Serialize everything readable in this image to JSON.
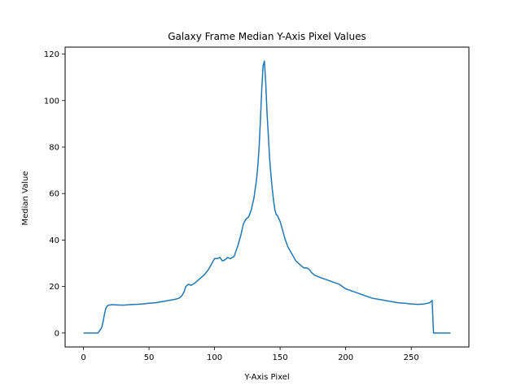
{
  "chart_data": {
    "type": "line",
    "title": "Galaxy Frame Median Y-Axis Pixel Values",
    "xlabel": "Y-Axis Pixel",
    "ylabel": "Median Value",
    "xlim": [
      -14,
      294
    ],
    "ylim": [
      -6,
      123
    ],
    "xticks": [
      0,
      50,
      100,
      150,
      200,
      250
    ],
    "yticks": [
      0,
      20,
      40,
      60,
      80,
      100,
      120
    ],
    "grid": false,
    "line_color": "#1f77b4",
    "series": [
      {
        "x": [
          0,
          11,
          13,
          14,
          15,
          16,
          17,
          18,
          19,
          20,
          22,
          25,
          28,
          31,
          35,
          40,
          45,
          50,
          55,
          60,
          65,
          67,
          70,
          73,
          75,
          77,
          78,
          80,
          82,
          85,
          88,
          90,
          92,
          95,
          98,
          100,
          102,
          104,
          106,
          108,
          110,
          112,
          115,
          118,
          120,
          122,
          124,
          126,
          128,
          130,
          131,
          132,
          133,
          134,
          135,
          136,
          137,
          138,
          139,
          140,
          141,
          142,
          143,
          144,
          145,
          146,
          147,
          148,
          150,
          152,
          154,
          156,
          158,
          160,
          162,
          164,
          166,
          168,
          170,
          172,
          174,
          176,
          178,
          180,
          185,
          190,
          195,
          200,
          205,
          210,
          215,
          220,
          225,
          230,
          235,
          240,
          245,
          250,
          255,
          260,
          264,
          265,
          266,
          267,
          280
        ],
        "values": [
          0,
          0,
          1.5,
          2.5,
          5,
          8,
          10.5,
          11.5,
          12,
          12,
          12.2,
          12.1,
          12,
          12,
          12.2,
          12.3,
          12.5,
          12.8,
          13,
          13.5,
          14,
          14.2,
          14.5,
          15,
          16,
          18,
          20,
          21,
          20.5,
          21.5,
          23,
          24,
          25,
          27,
          30,
          32,
          32,
          32.5,
          31,
          31.5,
          32.5,
          32,
          33,
          38,
          42,
          47,
          49,
          50,
          53,
          58,
          62,
          66,
          72,
          80,
          92,
          105,
          115,
          117,
          108,
          95,
          85,
          75,
          68,
          62,
          57,
          53,
          51,
          50.5,
          48,
          44,
          40,
          37,
          35,
          33,
          31,
          30,
          29,
          28,
          28,
          27.5,
          26,
          25,
          24.5,
          24,
          23,
          22,
          21,
          19,
          18,
          17,
          16,
          15,
          14.5,
          14,
          13.5,
          13,
          12.8,
          12.5,
          12.3,
          12.5,
          13,
          13.5,
          14,
          0,
          0
        ]
      }
    ]
  }
}
